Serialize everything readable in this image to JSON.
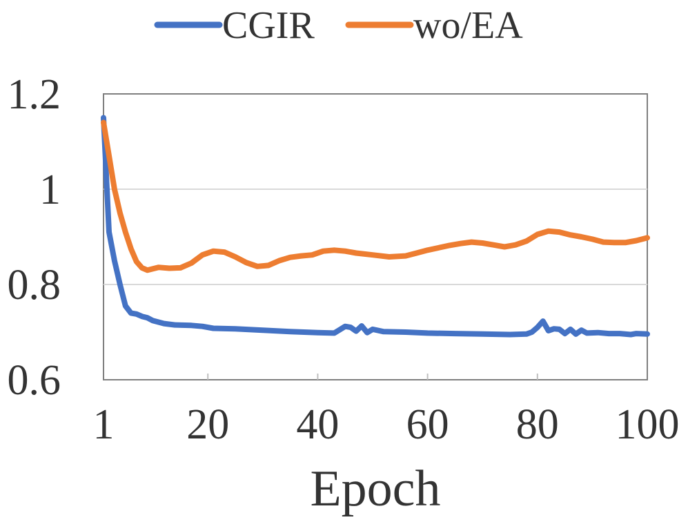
{
  "chart_data": {
    "type": "line",
    "title": "",
    "xlabel": "Epoch",
    "ylabel": "",
    "xlim": [
      1,
      100
    ],
    "ylim": [
      0.6,
      1.2
    ],
    "x_ticks": [
      1,
      20,
      40,
      60,
      80,
      100
    ],
    "x_tick_labels": [
      "1",
      "20",
      "40",
      "60",
      "80",
      "100"
    ],
    "y_ticks": [
      0.6,
      0.8,
      1.0,
      1.2
    ],
    "y_tick_labels": [
      "0.6",
      "0.8",
      "1",
      "1.2"
    ],
    "grid": "horizontal",
    "legend_position": "top",
    "series": [
      {
        "name": "CGIR",
        "color": "#4472C4",
        "points": [
          [
            1,
            1.15
          ],
          [
            2,
            0.91
          ],
          [
            3,
            0.85
          ],
          [
            4,
            0.8
          ],
          [
            5,
            0.755
          ],
          [
            6,
            0.74
          ],
          [
            7,
            0.738
          ],
          [
            8,
            0.733
          ],
          [
            9,
            0.73
          ],
          [
            10,
            0.724
          ],
          [
            12,
            0.718
          ],
          [
            14,
            0.715
          ],
          [
            17,
            0.714
          ],
          [
            19,
            0.712
          ],
          [
            21,
            0.708
          ],
          [
            25,
            0.707
          ],
          [
            30,
            0.704
          ],
          [
            35,
            0.701
          ],
          [
            40,
            0.699
          ],
          [
            43,
            0.698
          ],
          [
            44,
            0.705
          ],
          [
            45,
            0.712
          ],
          [
            46,
            0.71
          ],
          [
            47,
            0.702
          ],
          [
            48,
            0.713
          ],
          [
            49,
            0.699
          ],
          [
            50,
            0.706
          ],
          [
            52,
            0.701
          ],
          [
            56,
            0.7
          ],
          [
            60,
            0.698
          ],
          [
            65,
            0.697
          ],
          [
            70,
            0.696
          ],
          [
            75,
            0.695
          ],
          [
            78,
            0.696
          ],
          [
            79,
            0.7
          ],
          [
            80,
            0.71
          ],
          [
            81,
            0.723
          ],
          [
            82,
            0.703
          ],
          [
            83,
            0.707
          ],
          [
            84,
            0.706
          ],
          [
            85,
            0.697
          ],
          [
            86,
            0.706
          ],
          [
            87,
            0.696
          ],
          [
            88,
            0.704
          ],
          [
            89,
            0.698
          ],
          [
            91,
            0.699
          ],
          [
            93,
            0.697
          ],
          [
            95,
            0.697
          ],
          [
            97,
            0.695
          ],
          [
            98,
            0.697
          ],
          [
            100,
            0.696
          ]
        ]
      },
      {
        "name": "wo/EA",
        "color": "#ED7D31",
        "points": [
          [
            1,
            1.14
          ],
          [
            2,
            1.07
          ],
          [
            3,
            1.0
          ],
          [
            4,
            0.95
          ],
          [
            5,
            0.91
          ],
          [
            6,
            0.875
          ],
          [
            7,
            0.848
          ],
          [
            8,
            0.835
          ],
          [
            9,
            0.83
          ],
          [
            11,
            0.836
          ],
          [
            13,
            0.834
          ],
          [
            15,
            0.835
          ],
          [
            17,
            0.845
          ],
          [
            19,
            0.862
          ],
          [
            21,
            0.87
          ],
          [
            23,
            0.868
          ],
          [
            25,
            0.858
          ],
          [
            27,
            0.846
          ],
          [
            29,
            0.838
          ],
          [
            31,
            0.84
          ],
          [
            33,
            0.85
          ],
          [
            35,
            0.857
          ],
          [
            37,
            0.86
          ],
          [
            39,
            0.862
          ],
          [
            41,
            0.87
          ],
          [
            43,
            0.872
          ],
          [
            45,
            0.87
          ],
          [
            47,
            0.866
          ],
          [
            50,
            0.862
          ],
          [
            53,
            0.858
          ],
          [
            56,
            0.86
          ],
          [
            58,
            0.866
          ],
          [
            60,
            0.872
          ],
          [
            62,
            0.877
          ],
          [
            64,
            0.882
          ],
          [
            66,
            0.886
          ],
          [
            68,
            0.889
          ],
          [
            70,
            0.887
          ],
          [
            72,
            0.883
          ],
          [
            74,
            0.879
          ],
          [
            76,
            0.883
          ],
          [
            78,
            0.891
          ],
          [
            80,
            0.905
          ],
          [
            82,
            0.912
          ],
          [
            84,
            0.91
          ],
          [
            86,
            0.904
          ],
          [
            88,
            0.9
          ],
          [
            90,
            0.895
          ],
          [
            92,
            0.889
          ],
          [
            94,
            0.888
          ],
          [
            96,
            0.888
          ],
          [
            98,
            0.892
          ],
          [
            100,
            0.898
          ]
        ]
      }
    ]
  }
}
